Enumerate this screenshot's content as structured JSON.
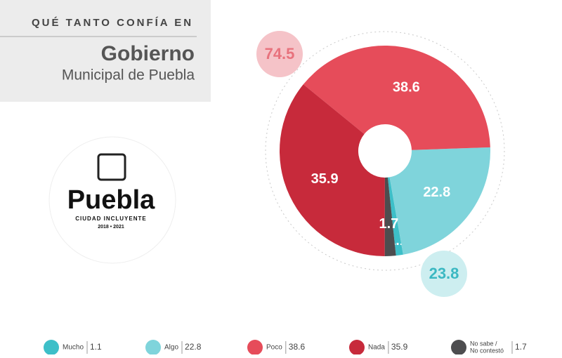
{
  "header": {
    "kicker": "QUÉ TANTO CONFÍA EN",
    "title": "Gobierno",
    "subtitle": "Municipal de Puebla"
  },
  "logo": {
    "name": "Puebla",
    "tagline": "CIUDAD INCLUYENTE",
    "years": "2018 • 2021"
  },
  "chart_data": {
    "type": "pie",
    "categories": [
      "Mucho",
      "Algo",
      "Poco",
      "Nada",
      "No sabe / No contestó"
    ],
    "values": [
      1.1,
      22.8,
      38.6,
      35.9,
      1.7
    ],
    "colors": [
      "#3dbfc8",
      "#7fd4db",
      "#e64c5a",
      "#c72a3b",
      "#4d4d4f"
    ],
    "annotations": [
      {
        "value": 74.5,
        "color": "#f5c3c8"
      },
      {
        "value": 23.8,
        "color": "#cdeef0"
      }
    ]
  }
}
